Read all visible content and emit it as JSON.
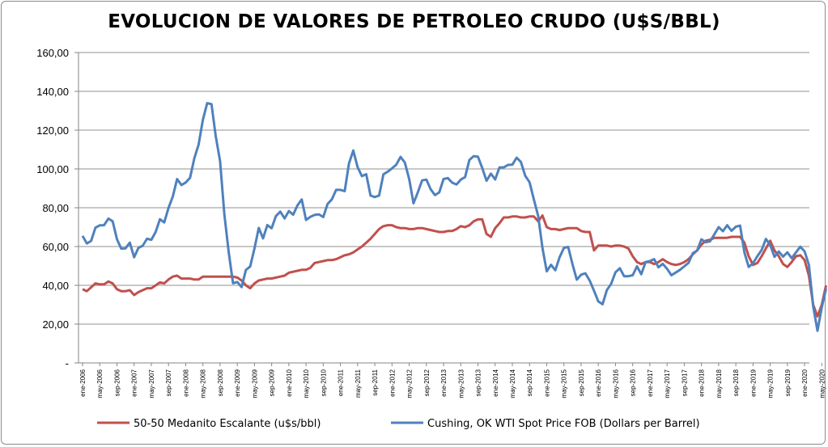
{
  "chart_data": {
    "type": "line",
    "title": "EVOLUCION DE VALORES DE PETROLEO CRUDO (U$S/BBL)",
    "xlabel": "",
    "ylabel": "",
    "ylim": [
      0,
      160
    ],
    "yticks": [
      "-",
      "20,00",
      "40,00",
      "60,00",
      "80,00",
      "100,00",
      "120,00",
      "140,00",
      "160,00"
    ],
    "x_start": "ene-2006",
    "x_end": "jun-2020",
    "x_frequency": "monthly",
    "xtick_labels": [
      "ene-2006",
      "may-2006",
      "sep-2006",
      "ene-2007",
      "may-2007",
      "sep-2007",
      "ene-2008",
      "may-2008",
      "sep-2008",
      "ene-2009",
      "may-2009",
      "sep-2009",
      "ene-2010",
      "may-2010",
      "sep-2010",
      "ene-2011",
      "may-2011",
      "sep-2011",
      "ene-2012",
      "may-2012",
      "sep-2012",
      "ene-2013",
      "may-2013",
      "sep-2013",
      "ene-2014",
      "may-2014",
      "sep-2014",
      "ene-2015",
      "may-2015",
      "sep-2015",
      "ene-2016",
      "may-2016",
      "sep-2016",
      "ene-2017",
      "may-2017",
      "sep-2017",
      "ene-2018",
      "may-2018",
      "sep-2018",
      "ene-2019",
      "may-2019",
      "sep-2019",
      "ene-2020",
      "may-2020"
    ],
    "grid": "horizontal",
    "legend_position": "bottom",
    "series": [
      {
        "name": "50-50 Medanito Escalante (u$s/bbl)",
        "color": "#c0504d",
        "values": [
          38,
          37,
          39,
          41,
          40.5,
          40.5,
          42,
          41,
          38,
          37,
          37,
          37.5,
          35,
          36.5,
          37.5,
          38.5,
          38.5,
          40,
          41.5,
          41,
          43,
          44.5,
          45,
          43.5,
          43.5,
          43.5,
          43,
          43,
          44.5,
          44.5,
          44.5,
          44.5,
          44.5,
          44.5,
          44.5,
          44.5,
          44,
          42.5,
          40,
          38.5,
          41,
          42.5,
          43,
          43.5,
          43.5,
          44,
          44.5,
          45,
          46.5,
          47,
          47.5,
          48,
          48,
          49,
          51.5,
          52,
          52.5,
          53,
          53,
          53.5,
          54.5,
          55.5,
          56,
          57,
          58.5,
          60,
          62,
          64,
          66.5,
          69,
          70.5,
          71,
          71,
          70,
          69.5,
          69.5,
          69,
          69,
          69.5,
          69.5,
          69,
          68.5,
          68,
          67.5,
          67.5,
          68,
          68,
          69,
          70.5,
          70,
          71,
          73,
          74,
          74,
          66.5,
          65,
          69.5,
          72,
          75,
          75,
          75.5,
          75.5,
          75,
          75,
          75.5,
          75.5,
          73,
          76,
          70,
          69,
          69,
          68.5,
          69,
          69.5,
          69.5,
          69.5,
          68,
          67.5,
          67.5,
          58,
          60.5,
          60.5,
          60.5,
          60,
          60.5,
          60.5,
          60,
          59,
          55,
          52,
          51,
          52,
          52,
          51,
          52,
          53.5,
          52,
          51,
          50.5,
          51,
          52,
          53.5,
          56,
          58,
          61,
          63,
          63.5,
          64.5,
          64.5,
          64.5,
          64.5,
          65,
          65,
          65,
          62,
          55,
          50.5,
          51.5,
          55,
          59,
          63,
          58,
          55,
          51,
          49.5,
          52,
          55,
          55.5,
          53,
          45,
          30,
          24,
          30,
          40
        ]
      },
      {
        "name": "Cushing, OK WTI Spot Price FOB (Dollars per Barrel)",
        "color": "#4f81bd",
        "values": [
          65.5,
          61.6,
          62.9,
          69.7,
          70.9,
          71.0,
          74.4,
          73.0,
          63.8,
          58.9,
          59.1,
          62.0,
          54.5,
          59.3,
          60.4,
          64.0,
          63.5,
          67.5,
          74.1,
          72.4,
          79.9,
          85.8,
          94.8,
          91.7,
          93.0,
          95.4,
          105.5,
          112.6,
          125.4,
          133.9,
          133.4,
          116.7,
          104.1,
          76.6,
          57.3,
          41.1,
          41.7,
          39.1,
          47.9,
          49.7,
          59.0,
          69.6,
          64.2,
          71.1,
          69.4,
          75.7,
          78.0,
          74.5,
          78.3,
          76.4,
          81.2,
          84.3,
          73.7,
          75.3,
          76.3,
          76.6,
          75.2,
          81.9,
          84.3,
          89.2,
          89.2,
          88.6,
          102.9,
          109.5,
          100.9,
          96.3,
          97.3,
          86.3,
          85.5,
          86.3,
          97.2,
          98.6,
          100.3,
          102.2,
          106.2,
          103.3,
          94.7,
          82.3,
          87.9,
          94.1,
          94.5,
          89.5,
          86.5,
          87.9,
          94.8,
          95.3,
          92.9,
          92.0,
          94.5,
          95.8,
          104.6,
          106.6,
          106.3,
          100.5,
          93.9,
          97.6,
          94.6,
          100.8,
          100.8,
          102.1,
          102.2,
          105.8,
          103.6,
          96.5,
          93.2,
          84.4,
          75.8,
          59.3,
          47.2,
          50.6,
          47.8,
          54.5,
          59.3,
          59.8,
          50.9,
          42.9,
          45.5,
          46.2,
          42.4,
          37.2,
          31.7,
          30.3,
          37.6,
          40.8,
          46.7,
          48.8,
          44.7,
          44.7,
          45.2,
          49.8,
          45.7,
          52.0,
          52.5,
          53.5,
          49.3,
          51.1,
          48.5,
          45.2,
          46.6,
          48.0,
          49.8,
          51.6,
          56.6,
          57.9,
          63.7,
          62.2,
          62.7,
          66.3,
          70.0,
          67.9,
          71.0,
          68.1,
          70.2,
          70.8,
          57.0,
          49.5,
          51.4,
          55.0,
          58.2,
          63.9,
          60.8,
          54.7,
          57.4,
          54.8,
          57.0,
          54.0,
          57.0,
          59.9,
          57.5,
          50.5,
          29.2,
          16.6,
          28.6,
          38.3
        ]
      }
    ]
  }
}
